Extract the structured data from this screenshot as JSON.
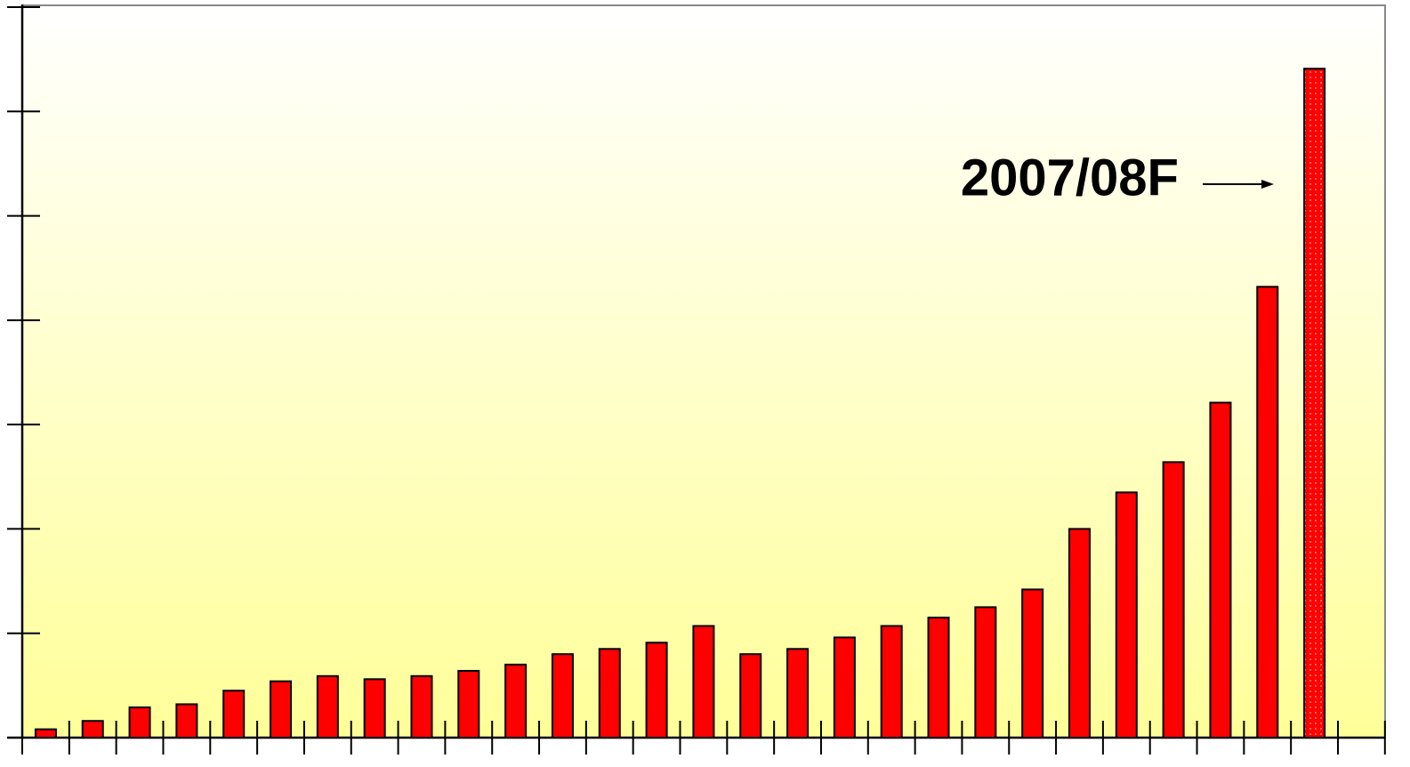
{
  "chart_data": {
    "type": "bar",
    "annotation": "2007/08F",
    "categories": [
      null,
      null,
      null,
      null,
      null,
      null,
      null,
      null,
      null,
      null,
      null,
      null,
      null,
      null,
      null,
      null,
      null,
      null,
      null,
      null,
      null,
      null,
      null,
      null,
      null,
      null,
      null,
      null
    ],
    "values": [
      0.08,
      0.16,
      0.29,
      0.32,
      0.45,
      0.54,
      0.59,
      0.56,
      0.59,
      0.64,
      0.7,
      0.8,
      0.85,
      0.91,
      1.07,
      0.8,
      0.85,
      0.96,
      1.07,
      1.15,
      1.25,
      1.42,
      2.0,
      2.35,
      2.64,
      3.21,
      4.32,
      6.41
    ],
    "color": "#ff0000",
    "ylim": [
      0,
      7
    ],
    "yticks": [
      0,
      1,
      2,
      3,
      4,
      5,
      6,
      7
    ],
    "grid": false
  }
}
